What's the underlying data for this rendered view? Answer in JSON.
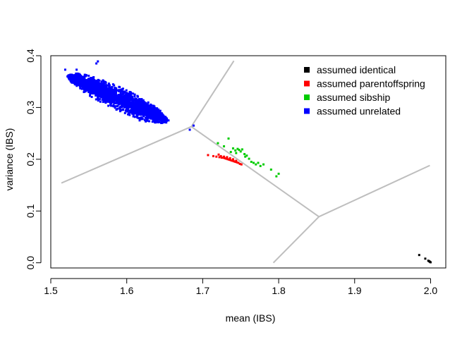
{
  "chart_data": {
    "type": "scatter",
    "title": "",
    "xlabel": "mean (IBS)",
    "ylabel": "variance (IBS)",
    "xlim": [
      1.5,
      2.02
    ],
    "ylim": [
      -0.01,
      0.4
    ],
    "x_ticks": [
      1.5,
      1.6,
      1.7,
      1.8,
      1.9,
      2.0
    ],
    "x_tick_labels": [
      "1.5",
      "1.6",
      "1.7",
      "1.8",
      "1.9",
      "2.0"
    ],
    "y_ticks": [
      0.0,
      0.1,
      0.2,
      0.3,
      0.4
    ],
    "y_tick_labels": [
      "0.0",
      "0.1",
      "0.2",
      "0.3",
      "0.4"
    ],
    "grid": false,
    "legend_position": "top-right",
    "series": [
      {
        "name": "assumed identical",
        "color": "#000000",
        "points": [
          [
            1.985,
            0.015
          ],
          [
            1.993,
            0.008
          ],
          [
            1.997,
            0.004
          ],
          [
            1.999,
            0.002
          ],
          [
            2.0,
            0.001
          ],
          [
            1.998,
            0.003
          ]
        ]
      },
      {
        "name": "assumed parentoffspring",
        "color": "#ff0000",
        "points": [
          [
            1.707,
            0.208
          ],
          [
            1.714,
            0.206
          ],
          [
            1.718,
            0.205
          ],
          [
            1.722,
            0.204
          ],
          [
            1.725,
            0.203
          ],
          [
            1.727,
            0.203
          ],
          [
            1.729,
            0.202
          ],
          [
            1.731,
            0.201
          ],
          [
            1.733,
            0.2
          ],
          [
            1.735,
            0.199
          ],
          [
            1.737,
            0.198
          ],
          [
            1.739,
            0.197
          ],
          [
            1.741,
            0.196
          ],
          [
            1.743,
            0.195
          ],
          [
            1.745,
            0.194
          ],
          [
            1.747,
            0.193
          ],
          [
            1.749,
            0.191
          ],
          [
            1.751,
            0.19
          ],
          [
            1.721,
            0.209
          ],
          [
            1.724,
            0.206
          ],
          [
            1.728,
            0.205
          ],
          [
            1.732,
            0.204
          ],
          [
            1.736,
            0.202
          ],
          [
            1.74,
            0.2
          ],
          [
            1.744,
            0.197
          ]
        ]
      },
      {
        "name": "assumed sibship",
        "color": "#00cc00",
        "points": [
          [
            1.72,
            0.231
          ],
          [
            1.728,
            0.225
          ],
          [
            1.734,
            0.24
          ],
          [
            1.737,
            0.214
          ],
          [
            1.74,
            0.221
          ],
          [
            1.743,
            0.217
          ],
          [
            1.746,
            0.22
          ],
          [
            1.748,
            0.218
          ],
          [
            1.75,
            0.215
          ],
          [
            1.752,
            0.219
          ],
          [
            1.755,
            0.21
          ],
          [
            1.758,
            0.207
          ],
          [
            1.761,
            0.201
          ],
          [
            1.764,
            0.195
          ],
          [
            1.767,
            0.193
          ],
          [
            1.77,
            0.19
          ],
          [
            1.773,
            0.193
          ],
          [
            1.776,
            0.187
          ],
          [
            1.78,
            0.19
          ],
          [
            1.79,
            0.18
          ],
          [
            1.797,
            0.167
          ],
          [
            1.8,
            0.172
          ],
          [
            1.756,
            0.205
          ],
          [
            1.744,
            0.212
          ]
        ]
      },
      {
        "name": "assumed unrelated",
        "color": "#0000ff",
        "cloud": {
          "center": [
            1.588,
            0.318
          ],
          "major_axis_end_a": [
            1.523,
            0.36
          ],
          "major_axis_end_b": [
            1.653,
            0.276
          ],
          "half_width_y": 0.023
        },
        "points": [
          [
            1.519,
            0.373
          ],
          [
            1.522,
            0.36
          ],
          [
            1.534,
            0.373
          ],
          [
            1.562,
            0.389
          ],
          [
            1.56,
            0.385
          ],
          [
            1.648,
            0.276
          ],
          [
            1.652,
            0.271
          ],
          [
            1.645,
            0.281
          ],
          [
            1.638,
            0.288
          ],
          [
            1.683,
            0.257
          ],
          [
            1.688,
            0.265
          ],
          [
            1.625,
            0.273
          ],
          [
            1.617,
            0.275
          ],
          [
            1.64,
            0.278
          ],
          [
            1.655,
            0.275
          ]
        ]
      }
    ],
    "boundaries": {
      "color": "#bebebe",
      "segments": [
        [
          [
            1.514,
            0.154
          ],
          [
            1.685,
            0.263
          ]
        ],
        [
          [
            1.685,
            0.263
          ],
          [
            1.741,
            0.39
          ]
        ],
        [
          [
            1.685,
            0.263
          ],
          [
            1.853,
            0.089
          ]
        ],
        [
          [
            1.853,
            0.089
          ],
          [
            1.793,
            0.0
          ]
        ],
        [
          [
            1.853,
            0.089
          ],
          [
            1.999,
            0.188
          ]
        ]
      ]
    }
  }
}
